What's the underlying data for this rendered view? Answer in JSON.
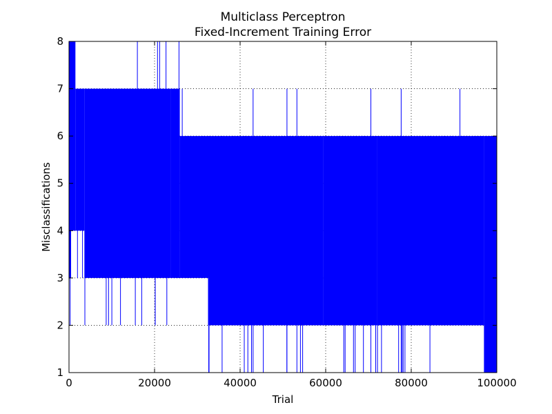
{
  "chart_data": {
    "type": "line",
    "title": "Multiclass Perceptron",
    "subtitle": "Fixed-Increment Training Error",
    "xlabel": "Trial",
    "ylabel": "Misclassifications",
    "xlim": [
      0,
      100000
    ],
    "ylim": [
      1,
      8
    ],
    "grid": true,
    "grid_style": "dotted",
    "legend": "none",
    "x_ticks": [
      0,
      20000,
      40000,
      60000,
      80000,
      100000
    ],
    "x_tick_labels": [
      "0",
      "20000",
      "40000",
      "60000",
      "80000",
      "100000"
    ],
    "y_ticks": [
      1,
      2,
      3,
      4,
      5,
      6,
      7,
      8
    ],
    "y_tick_labels": [
      "1",
      "2",
      "3",
      "4",
      "5",
      "6",
      "7",
      "8"
    ],
    "series": [
      {
        "color": "#0000ff",
        "note_ranges": "values oscillate rapidly between the listed min and max over each trial range",
        "bands": [
          {
            "x_start": 0,
            "x_end": 400,
            "min": 3,
            "max": 8
          },
          {
            "x_start": 400,
            "x_end": 1500,
            "min": 4,
            "max": 8
          },
          {
            "x_start": 1500,
            "x_end": 3600,
            "min": 4,
            "max": 7
          },
          {
            "x_start": 3600,
            "x_end": 23800,
            "min": 3,
            "max": 7
          },
          {
            "x_start": 23800,
            "x_end": 25900,
            "min": 3,
            "max": 7
          },
          {
            "x_start": 25900,
            "x_end": 32500,
            "min": 3,
            "max": 6
          },
          {
            "x_start": 32500,
            "x_end": 59500,
            "min": 2,
            "max": 6
          },
          {
            "x_start": 59500,
            "x_end": 72000,
            "min": 2,
            "max": 6
          },
          {
            "x_start": 72000,
            "x_end": 97000,
            "min": 2,
            "max": 6
          },
          {
            "x_start": 97000,
            "x_end": 100000,
            "min": 1,
            "max": 6
          }
        ]
      }
    ]
  }
}
